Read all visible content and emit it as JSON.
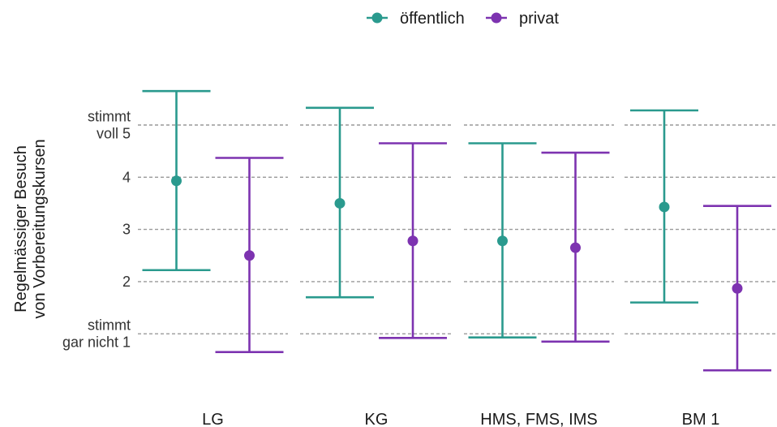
{
  "chart_data": {
    "type": "scatter",
    "subtype": "point-range (mean with error bars)",
    "ylabel": [
      "Regelmässiger Besuch",
      "von Vorbereitungskursen"
    ],
    "xlabel": "",
    "y_ticks": [
      {
        "value": 5,
        "label": [
          "stimmt",
          "voll 5"
        ]
      },
      {
        "value": 4,
        "label": [
          "4"
        ]
      },
      {
        "value": 3,
        "label": [
          "3"
        ]
      },
      {
        "value": 2,
        "label": [
          "2"
        ]
      },
      {
        "value": 1,
        "label": [
          "stimmt",
          "gar nicht 1"
        ]
      }
    ],
    "ylim": [
      0.1,
      6.7
    ],
    "grid": "dashed horizontal at y ticks",
    "legend_position": "top-center",
    "categories": [
      "LG",
      "KG",
      "HMS, FMS, IMS",
      "BM 1"
    ],
    "series": [
      {
        "name": "öffentlich",
        "color": "#2a9a8e",
        "mean": [
          3.93,
          3.5,
          2.78,
          3.43
        ],
        "upper": [
          5.65,
          5.33,
          4.65,
          5.28
        ],
        "lower": [
          2.22,
          1.7,
          0.93,
          1.6
        ]
      },
      {
        "name": "privat",
        "color": "#7d33b0",
        "mean": [
          2.5,
          2.78,
          2.65,
          1.87
        ],
        "upper": [
          4.37,
          4.65,
          4.47,
          3.45
        ],
        "lower": [
          0.65,
          0.92,
          0.85,
          0.3
        ]
      }
    ]
  }
}
